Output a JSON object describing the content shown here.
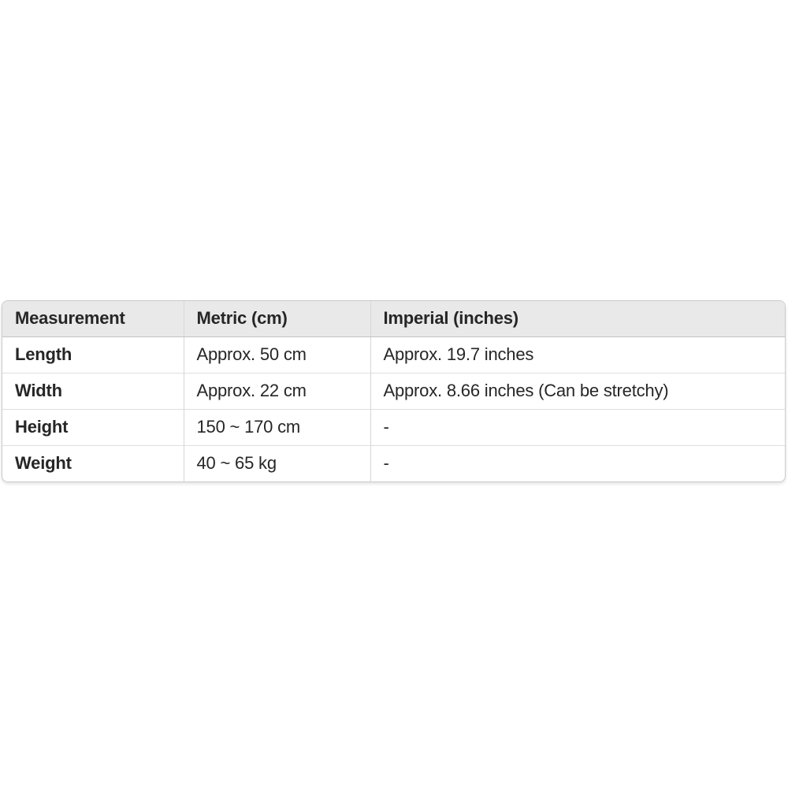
{
  "table": {
    "header": {
      "measurement": "Measurement",
      "metric": "Metric (cm)",
      "imperial": "Imperial (inches)"
    },
    "rows": [
      {
        "measurement": "Length",
        "metric": "Approx. 50 cm",
        "imperial": "Approx. 19.7 inches"
      },
      {
        "measurement": "Width",
        "metric": "Approx. 22 cm",
        "imperial": "Approx. 8.66 inches (Can be stretchy)"
      },
      {
        "measurement": "Height",
        "metric": "150 ~ 170 cm",
        "imperial": "-"
      },
      {
        "measurement": "Weight",
        "metric": "40 ~ 65 kg",
        "imperial": "-"
      }
    ]
  },
  "colors": {
    "page_bg": "#ffffff",
    "header_bg": "#e9e9e9",
    "outer_border": "#cccccc",
    "header_border": "#c2c2c2",
    "row_border": "#dedede",
    "col_border": "#d6d6d6",
    "text": "#262626"
  }
}
